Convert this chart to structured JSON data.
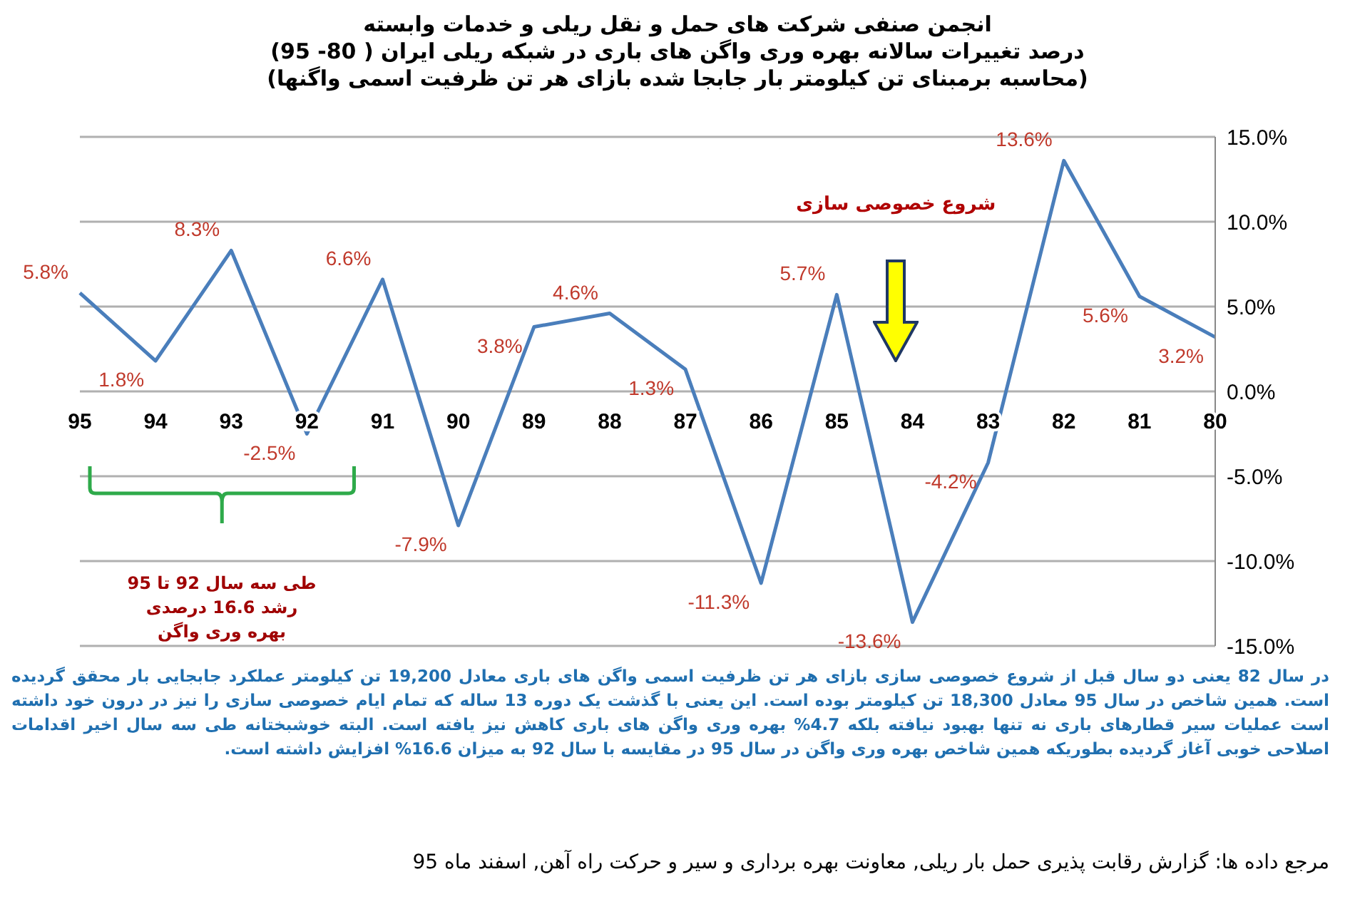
{
  "chart_data": {
    "type": "line",
    "title": "انجمن صنفی شرکت های حمل و نقل ریلی و خدمات وابسته",
    "subtitle": "درصد تغییرات سالانه بهره وری واگن های باری در شبکه ریلی ایران ( 80- 95)\n(محاسبه برمبنای تن کیلومتر بار جابجا شده بازای هر تن ظرفیت اسمی واگنها)",
    "categories": [
      "95",
      "94",
      "93",
      "92",
      "91",
      "90",
      "89",
      "88",
      "87",
      "86",
      "85",
      "84",
      "83",
      "82",
      "81",
      "80"
    ],
    "series": [
      {
        "color": "#4a7ebb",
        "values": [
          5.8,
          1.8,
          8.3,
          -2.5,
          6.6,
          -7.9,
          3.8,
          4.6,
          1.3,
          -11.3,
          5.7,
          -13.6,
          -4.2,
          13.6,
          5.6,
          3.2
        ],
        "value_labels": [
          "5.8%",
          "1.8%",
          "8.3%",
          "-2.5%",
          "6.6%",
          "-7.9%",
          "3.8%",
          "4.6%",
          "1.3%",
          "-11.3%",
          "5.7%",
          "-13.6%",
          "-4.2%",
          "13.6%",
          "5.6%",
          "3.2%"
        ]
      }
    ],
    "ylim": [
      -15,
      15
    ],
    "yticks": [
      {
        "value": -15,
        "label": "-15.0%"
      },
      {
        "value": -10,
        "label": "-10.0%"
      },
      {
        "value": -5,
        "label": "-5.0%"
      },
      {
        "value": 0,
        "label": "0.0%"
      },
      {
        "value": 5,
        "label": "5.0%"
      },
      {
        "value": 10,
        "label": "10.0%"
      },
      {
        "value": 15,
        "label": "15.0%"
      }
    ],
    "grid": "y",
    "marker": "none",
    "line_style": "solid",
    "legend": false,
    "annotations": [
      "شروع خصوصی سازی",
      "طی سه سال 92 تا 95\nرشد 16.6 درصدی\nبهره وری واگن",
      "در سال 82 یعنی دو سال قبل از شروع خصوصی سازی بازای هر تن ظرفیت اسمی واگن های باری معادل 19,200 تن کیلومتر عملکرد جابجایی بار محقق گردیده است. همین شاخص در سال 95 معادل 18,300 تن کیلومتر بوده است. این یعنی با گذشت یک دوره 13 ساله که تمام ایام خصوصی سازی را نیز در درون خود داشته است عملیات سیر قطارهای باری نه تنها بهبود نیافته بلکه 4.7% بهره وری واگن های باری کاهش نیز یافته است. البته خوشبختانه طی سه سال اخیر اقدامات اصلاحی خوبی آغاز گردیده بطوریکه همین شاخص بهره وری واگن در سال 95 در مقایسه با سال 92 به میزان 16.6% افزایش داشته است.",
      "مرجع داده ها: گزارش رقابت پذیری حمل بار ریلی, معاونت بهره برداری و سیر و حرکت راه آهن, اسفند ماه 95"
    ]
  }
}
